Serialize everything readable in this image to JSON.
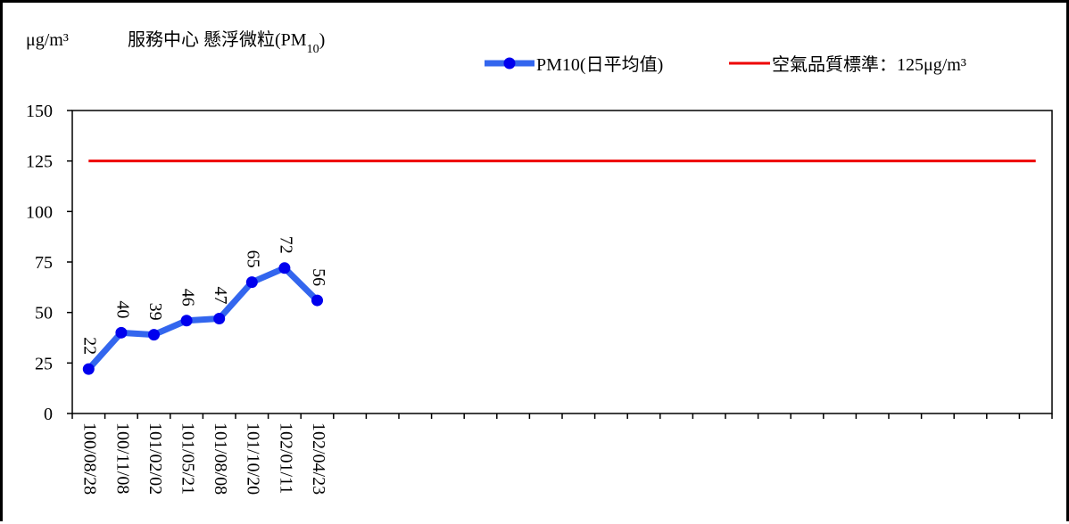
{
  "chart_data": {
    "type": "line",
    "unit_label": "μg/m³",
    "title_main": "服務中心 懸浮微粒(PM",
    "title_sub": "10",
    "title_close": ")",
    "yticks": [
      "0",
      "25",
      "50",
      "75",
      "100",
      "125",
      "150"
    ],
    "ylim": [
      0,
      150
    ],
    "slot_count": 30,
    "categories": [
      "100/08/28",
      "100/11/08",
      "101/02/02",
      "101/05/21",
      "101/08/08",
      "101/10/20",
      "102/01/11",
      "102/04/23"
    ],
    "series": [
      {
        "name": "PM10(日平均值)",
        "values": [
          22,
          40,
          39,
          46,
          47,
          65,
          72,
          56
        ],
        "color": "#3366ee"
      }
    ],
    "reference_line": {
      "name": "空氣品質標準：125μg/m³",
      "value": 125,
      "color": "#ee0000"
    },
    "grid": false
  }
}
